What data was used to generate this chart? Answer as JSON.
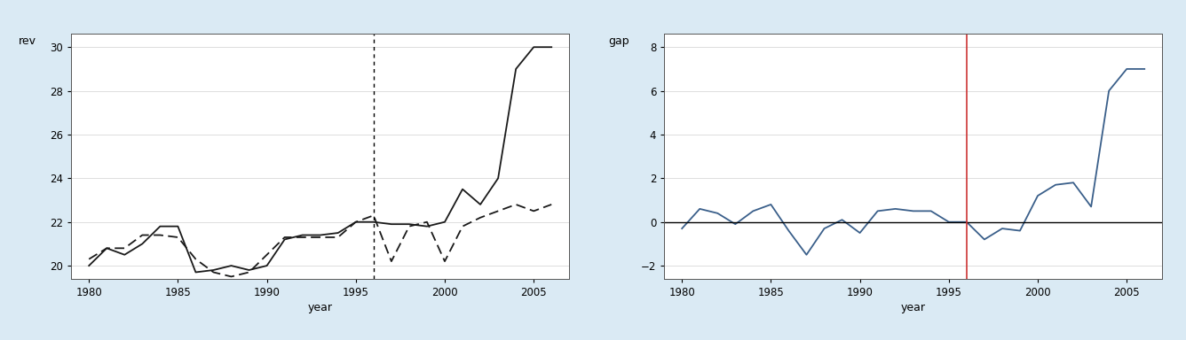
{
  "years": [
    1980,
    1981,
    1982,
    1983,
    1984,
    1985,
    1986,
    1987,
    1988,
    1989,
    1990,
    1991,
    1992,
    1993,
    1994,
    1995,
    1996,
    1997,
    1998,
    1999,
    2000,
    2001,
    2002,
    2003,
    2004,
    2005,
    2006
  ],
  "argentina": [
    20.0,
    20.8,
    20.5,
    21.0,
    21.8,
    21.8,
    19.7,
    19.8,
    20.0,
    19.8,
    20.0,
    21.2,
    21.4,
    21.4,
    21.5,
    22.0,
    22.0,
    21.9,
    21.9,
    21.8,
    22.0,
    23.5,
    22.8,
    24.0,
    29.0,
    30.0,
    30.0
  ],
  "synthetic_argentina": [
    20.3,
    20.8,
    20.8,
    21.4,
    21.4,
    21.3,
    20.3,
    19.7,
    19.5,
    19.7,
    20.5,
    21.3,
    21.3,
    21.3,
    21.3,
    22.0,
    22.3,
    20.2,
    21.8,
    22.0,
    20.2,
    21.8,
    22.2,
    22.5,
    22.8,
    22.5,
    22.8
  ],
  "gap": [
    -0.3,
    0.6,
    0.4,
    -0.1,
    0.5,
    0.8,
    -0.4,
    -1.5,
    -0.3,
    0.1,
    -0.5,
    0.5,
    0.6,
    0.5,
    0.5,
    0.0,
    0.0,
    -0.8,
    -0.3,
    -0.4,
    1.2,
    1.7,
    1.8,
    0.7,
    6.0,
    7.0,
    7.0
  ],
  "vline_year": 1996,
  "bg_color": "#daeaf4",
  "plot_bg_color": "#ffffff",
  "line_color": "#1a1a1a",
  "dashed_color": "#1a1a1a",
  "gap_line_color": "#3a5f8a",
  "red_vline_color": "#cc3333",
  "ylabel_left": "rev",
  "ylabel_right": "gap",
  "xlabel": "year",
  "ylim_left": [
    19.4,
    30.6
  ],
  "yticks_left": [
    20,
    22,
    24,
    26,
    28,
    30
  ],
  "ylim_right": [
    -2.6,
    8.6
  ],
  "yticks_right": [
    -2,
    0,
    2,
    4,
    6,
    8
  ],
  "xlim": [
    1979.0,
    2007.0
  ],
  "xticks": [
    1980,
    1985,
    1990,
    1995,
    2000,
    2005
  ]
}
